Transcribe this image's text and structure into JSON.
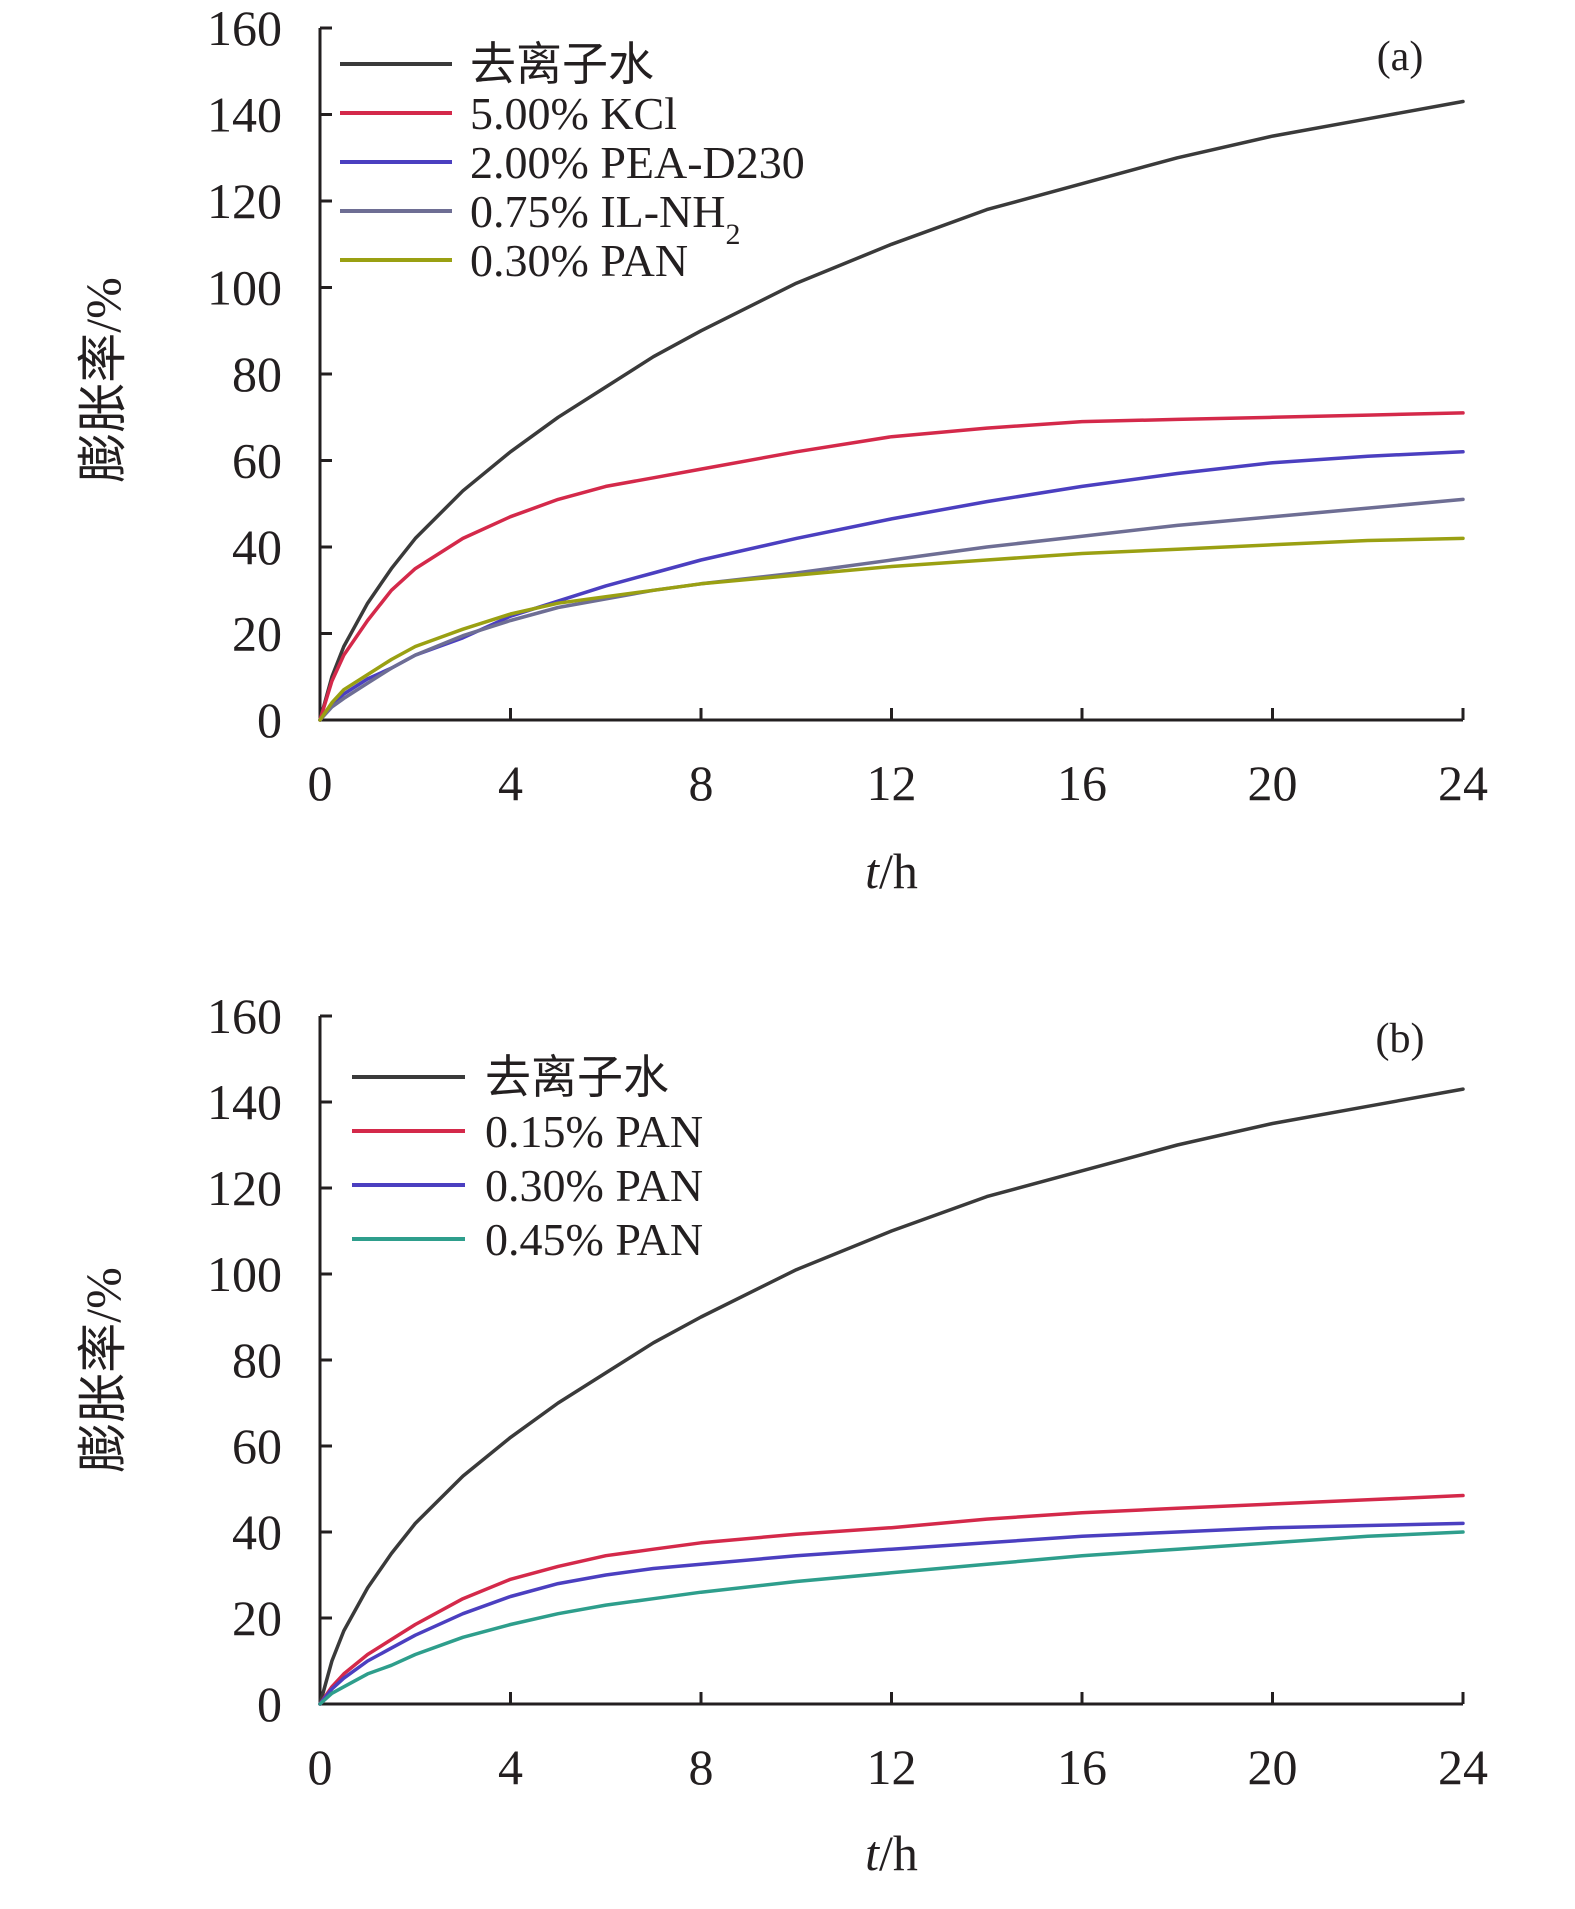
{
  "chart_data": [
    {
      "type": "line",
      "panel_label": "(a)",
      "xlabel": {
        "italic": "t",
        "rest": "/h"
      },
      "ylabel": "膨胀率/%",
      "xlim": [
        0,
        24
      ],
      "ylim": [
        0,
        160
      ],
      "xticks": [
        0,
        4,
        8,
        12,
        16,
        20,
        24
      ],
      "yticks": [
        0,
        20,
        40,
        60,
        80,
        100,
        120,
        140,
        160
      ],
      "grid": false,
      "legend_position": "top-left",
      "x": [
        0,
        0.25,
        0.5,
        1,
        1.5,
        2,
        3,
        4,
        5,
        6,
        7,
        8,
        10,
        12,
        14,
        16,
        18,
        20,
        22,
        24
      ],
      "series": [
        {
          "name": "去离子水",
          "color": "#3a3a3a",
          "values": [
            0,
            10,
            17,
            27,
            35,
            42,
            53,
            62,
            70,
            77,
            84,
            90,
            101,
            110,
            118,
            124,
            130,
            135,
            139,
            143
          ]
        },
        {
          "name": "5.00% KCl",
          "color": "#d4294a",
          "values": [
            0,
            9,
            15,
            23,
            30,
            35,
            42,
            47,
            51,
            54,
            56,
            58,
            62,
            65.5,
            67.5,
            69,
            69.5,
            70,
            70.5,
            71
          ]
        },
        {
          "name": "2.00% PEA-D230",
          "color": "#4b3fc0",
          "values": [
            0,
            3.5,
            6,
            9.5,
            12,
            15,
            19,
            24,
            27.5,
            31,
            34,
            37,
            42,
            46.5,
            50.5,
            54,
            57,
            59.5,
            61,
            62
          ]
        },
        {
          "name_parts": {
            "main": "0.75% IL-NH",
            "sub": "2"
          },
          "color": "#6e6e94",
          "values": [
            0,
            3,
            5,
            8.5,
            12,
            15,
            19.5,
            23,
            26,
            28,
            30,
            31.5,
            34,
            37,
            40,
            42.5,
            45,
            47,
            49,
            51
          ]
        },
        {
          "name": "0.30% PAN",
          "color": "#9aa012",
          "values": [
            0,
            4,
            7,
            10.5,
            14,
            17,
            21,
            24.5,
            27,
            28.5,
            30,
            31.5,
            33.5,
            35.5,
            37,
            38.5,
            39.5,
            40.5,
            41.5,
            42
          ]
        }
      ]
    },
    {
      "type": "line",
      "panel_label": "(b)",
      "xlabel": {
        "italic": "t",
        "rest": "/h"
      },
      "ylabel": "膨胀率/%",
      "xlim": [
        0,
        24
      ],
      "ylim": [
        0,
        160
      ],
      "xticks": [
        0,
        4,
        8,
        12,
        16,
        20,
        24
      ],
      "yticks": [
        0,
        20,
        40,
        60,
        80,
        100,
        120,
        140,
        160
      ],
      "grid": false,
      "legend_position": "top-left",
      "x": [
        0,
        0.25,
        0.5,
        1,
        1.5,
        2,
        3,
        4,
        5,
        6,
        7,
        8,
        10,
        12,
        14,
        16,
        18,
        20,
        22,
        24
      ],
      "series": [
        {
          "name": "去离子水",
          "color": "#3a3a3a",
          "values": [
            0,
            10,
            17,
            27,
            35,
            42,
            53,
            62,
            70,
            77,
            84,
            90,
            101,
            110,
            118,
            124,
            130,
            135,
            139,
            143
          ]
        },
        {
          "name": "0.15% PAN",
          "color": "#d4294a",
          "values": [
            0,
            4,
            7,
            11.5,
            15,
            18.5,
            24.5,
            29,
            32,
            34.5,
            36,
            37.5,
            39.5,
            41,
            43,
            44.5,
            45.5,
            46.5,
            47.5,
            48.5
          ]
        },
        {
          "name": "0.30% PAN",
          "color": "#4b3fc0",
          "values": [
            0,
            3.5,
            6,
            10,
            13,
            16,
            21,
            25,
            28,
            30,
            31.5,
            32.5,
            34.5,
            36,
            37.5,
            39,
            40,
            41,
            41.5,
            42
          ]
        },
        {
          "name": "0.45% PAN",
          "color": "#2e9e8c",
          "values": [
            0,
            2.5,
            4,
            7,
            9,
            11.5,
            15.5,
            18.5,
            21,
            23,
            24.5,
            26,
            28.5,
            30.5,
            32.5,
            34.5,
            36,
            37.5,
            39,
            40
          ]
        }
      ]
    }
  ]
}
